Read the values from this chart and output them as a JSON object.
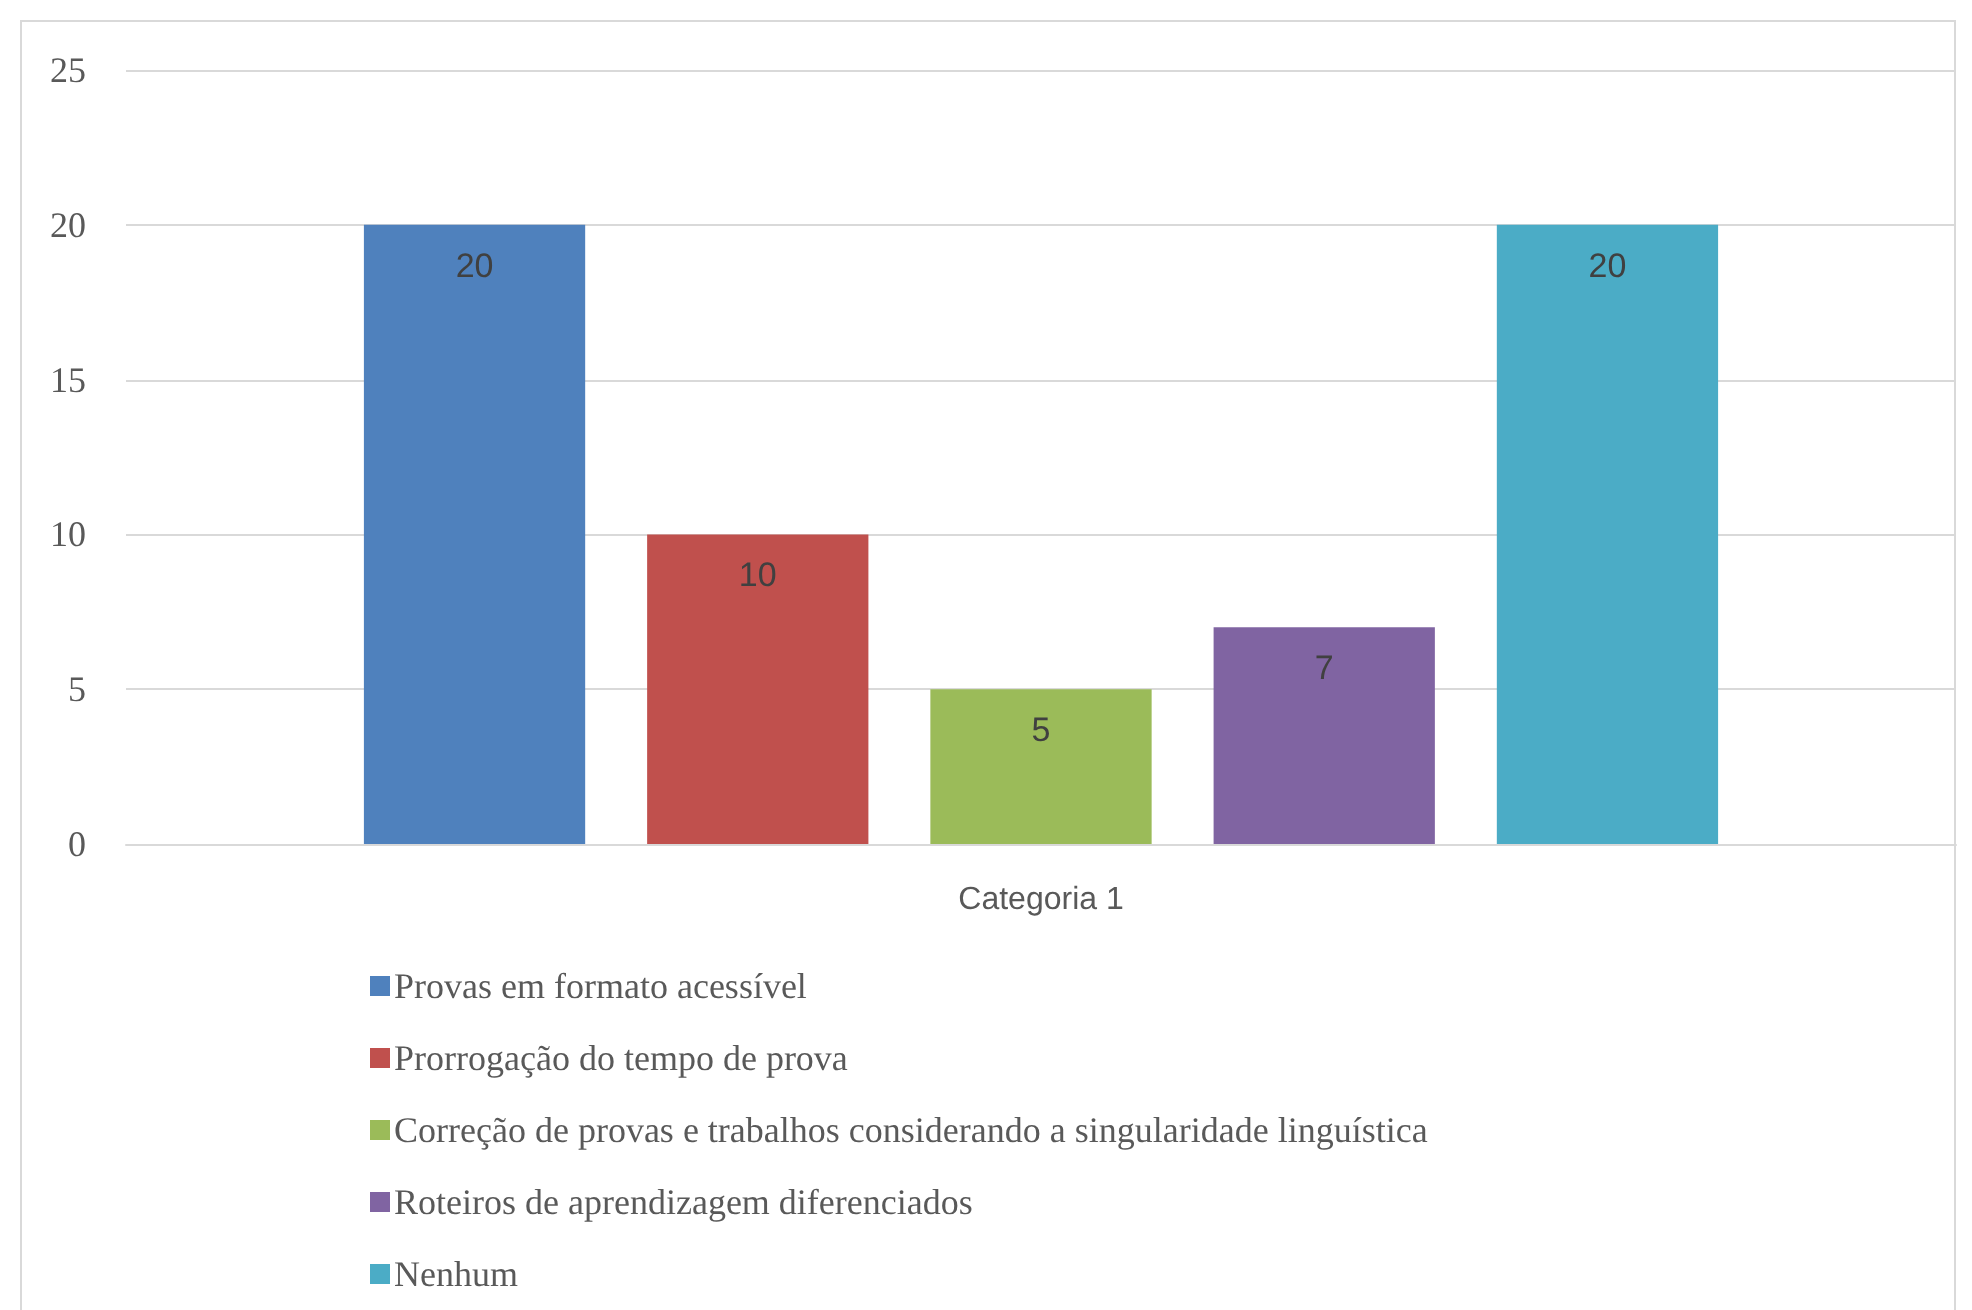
{
  "chart_data": {
    "type": "bar",
    "categories": [
      "Categoria 1"
    ],
    "series": [
      {
        "name": "Provas em formato acessível",
        "color": "#4f81bd",
        "values": [
          20
        ]
      },
      {
        "name": "Prorrogação do tempo de prova",
        "color": "#c0504d",
        "values": [
          10
        ]
      },
      {
        "name": "Correção de provas e trabalhos considerando a singularidade linguística",
        "color": "#9bbb59",
        "values": [
          5
        ]
      },
      {
        "name": "Roteiros de aprendizagem diferenciados",
        "color": "#8064a2",
        "values": [
          7
        ]
      },
      {
        "name": "Nenhum",
        "color": "#4bacc6",
        "values": [
          20
        ]
      }
    ],
    "ylim": [
      0,
      25
    ],
    "yticks": [
      0,
      5,
      10,
      15,
      20,
      25
    ],
    "grid": "y",
    "legend": "bottom",
    "data_labels": true
  }
}
